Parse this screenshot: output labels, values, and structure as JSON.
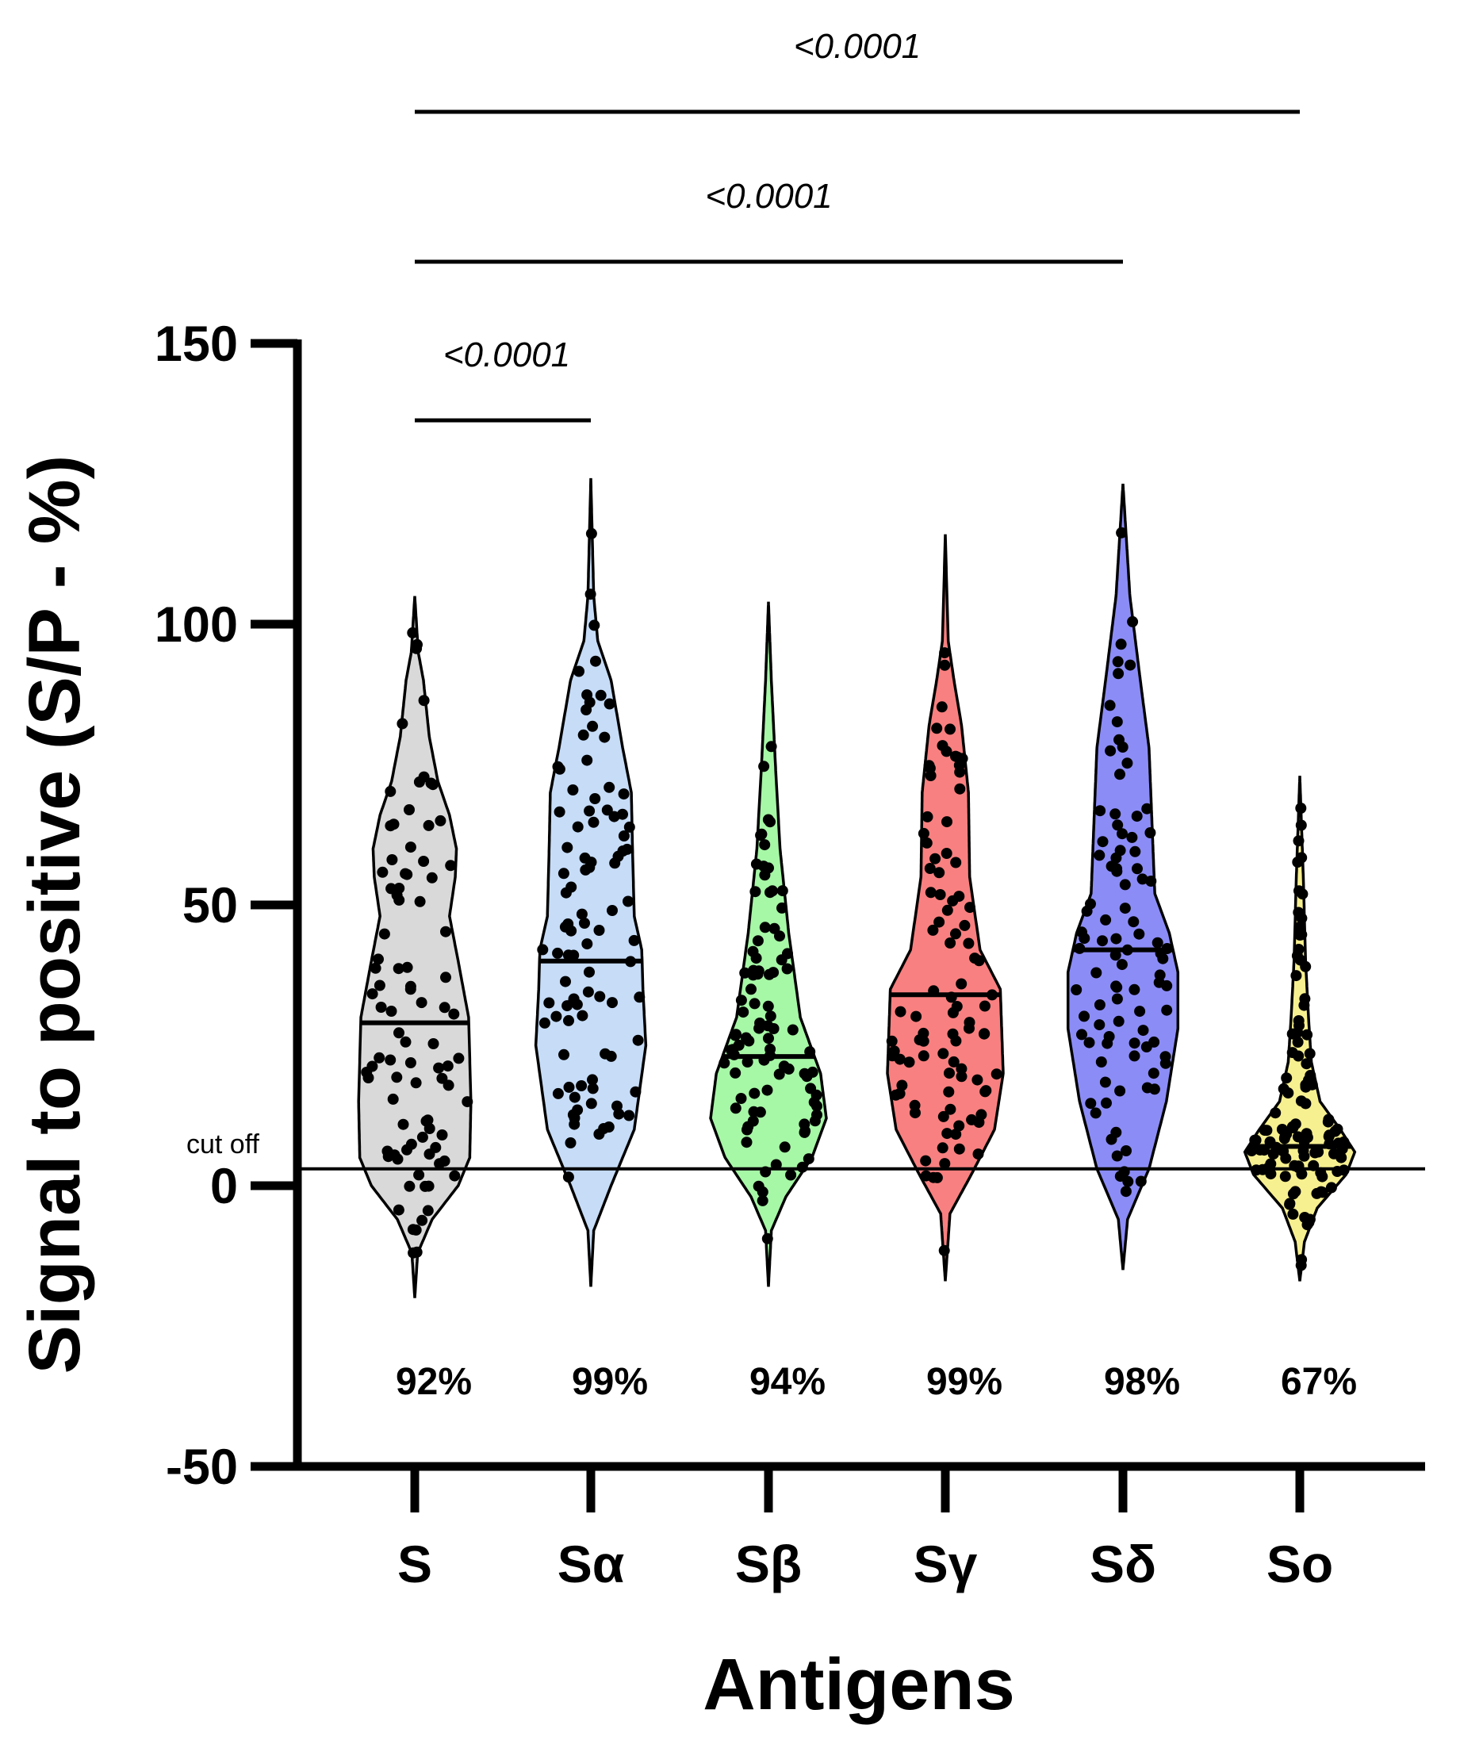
{
  "chart_data": {
    "type": "violin",
    "xlabel": "Antigens",
    "ylabel": "Signal to positive (S/P - %)",
    "ylim": [
      -50,
      150
    ],
    "yticks": [
      -50,
      0,
      50,
      100,
      150
    ],
    "grid": false,
    "cutoff": {
      "label": "cut off",
      "value": 3
    },
    "categories": [
      "S",
      "Sα",
      "Sβ",
      "Sγ",
      "Sδ",
      "So"
    ],
    "series": [
      {
        "category": "S",
        "color": "#d9d9d9",
        "median": 29,
        "min": -20,
        "max": 105,
        "positivity": "92%",
        "n_points": 90,
        "density": [
          [
            -20,
            0
          ],
          [
            -12,
            0.05
          ],
          [
            -6,
            0.3
          ],
          [
            0,
            0.75
          ],
          [
            5,
            0.95
          ],
          [
            15,
            0.97
          ],
          [
            30,
            0.93
          ],
          [
            40,
            0.75
          ],
          [
            48,
            0.6
          ],
          [
            55,
            0.7
          ],
          [
            60,
            0.72
          ],
          [
            66,
            0.6
          ],
          [
            72,
            0.4
          ],
          [
            80,
            0.25
          ],
          [
            90,
            0.15
          ],
          [
            95,
            0.06
          ],
          [
            105,
            0
          ]
        ]
      },
      {
        "category": "Sα",
        "color": "#c6dcf7",
        "median": 40,
        "min": -18,
        "max": 126,
        "positivity": "99%",
        "n_points": 95,
        "density": [
          [
            -18,
            0
          ],
          [
            -8,
            0.05
          ],
          [
            0,
            0.35
          ],
          [
            10,
            0.75
          ],
          [
            25,
            0.95
          ],
          [
            35,
            0.9
          ],
          [
            42,
            0.88
          ],
          [
            48,
            0.75
          ],
          [
            60,
            0.72
          ],
          [
            70,
            0.7
          ],
          [
            78,
            0.55
          ],
          [
            90,
            0.35
          ],
          [
            97,
            0.12
          ],
          [
            105,
            0.05
          ],
          [
            126,
            0
          ]
        ]
      },
      {
        "category": "Sβ",
        "color": "#a6f7a6",
        "median": 23,
        "min": -18,
        "max": 104,
        "positivity": "94%",
        "n_points": 95,
        "density": [
          [
            -18,
            0
          ],
          [
            -8,
            0.05
          ],
          [
            -2,
            0.3
          ],
          [
            5,
            0.75
          ],
          [
            12,
            1.0
          ],
          [
            20,
            0.9
          ],
          [
            30,
            0.55
          ],
          [
            45,
            0.35
          ],
          [
            60,
            0.2
          ],
          [
            75,
            0.12
          ],
          [
            90,
            0.05
          ],
          [
            104,
            0
          ]
        ]
      },
      {
        "category": "Sγ",
        "color": "#f98080",
        "median": 34,
        "min": -17,
        "max": 116,
        "positivity": "99%",
        "n_points": 95,
        "density": [
          [
            -17,
            0
          ],
          [
            -5,
            0.08
          ],
          [
            2,
            0.45
          ],
          [
            10,
            0.85
          ],
          [
            20,
            1.0
          ],
          [
            35,
            0.95
          ],
          [
            42,
            0.6
          ],
          [
            55,
            0.42
          ],
          [
            70,
            0.4
          ],
          [
            82,
            0.28
          ],
          [
            90,
            0.15
          ],
          [
            97,
            0.05
          ],
          [
            116,
            0
          ]
        ]
      },
      {
        "category": "Sδ",
        "color": "#8c8cf7",
        "median": 42,
        "min": -15,
        "max": 125,
        "positivity": "98%",
        "n_points": 95,
        "density": [
          [
            -15,
            0
          ],
          [
            -6,
            0.08
          ],
          [
            3,
            0.45
          ],
          [
            15,
            0.75
          ],
          [
            28,
            0.95
          ],
          [
            38,
            0.95
          ],
          [
            45,
            0.8
          ],
          [
            52,
            0.55
          ],
          [
            65,
            0.5
          ],
          [
            78,
            0.45
          ],
          [
            90,
            0.3
          ],
          [
            105,
            0.12
          ],
          [
            125,
            0
          ]
        ]
      },
      {
        "category": "So",
        "color": "#f7f090",
        "median": 7,
        "min": -17,
        "max": 73,
        "positivity": "67%",
        "n_points": 110,
        "density": [
          [
            -17,
            0
          ],
          [
            -10,
            0.08
          ],
          [
            -4,
            0.3
          ],
          [
            2,
            0.8
          ],
          [
            6,
            0.95
          ],
          [
            10,
            0.7
          ],
          [
            15,
            0.35
          ],
          [
            22,
            0.2
          ],
          [
            30,
            0.15
          ],
          [
            40,
            0.1
          ],
          [
            55,
            0.06
          ],
          [
            73,
            0
          ]
        ]
      }
    ],
    "comparisons": [
      {
        "from": "S",
        "to": "Sα",
        "p": "<0.0001"
      },
      {
        "from": "S",
        "to": "Sδ",
        "p": "<0.0001"
      },
      {
        "from": "S",
        "to": "So",
        "p": "<0.0001"
      }
    ]
  }
}
